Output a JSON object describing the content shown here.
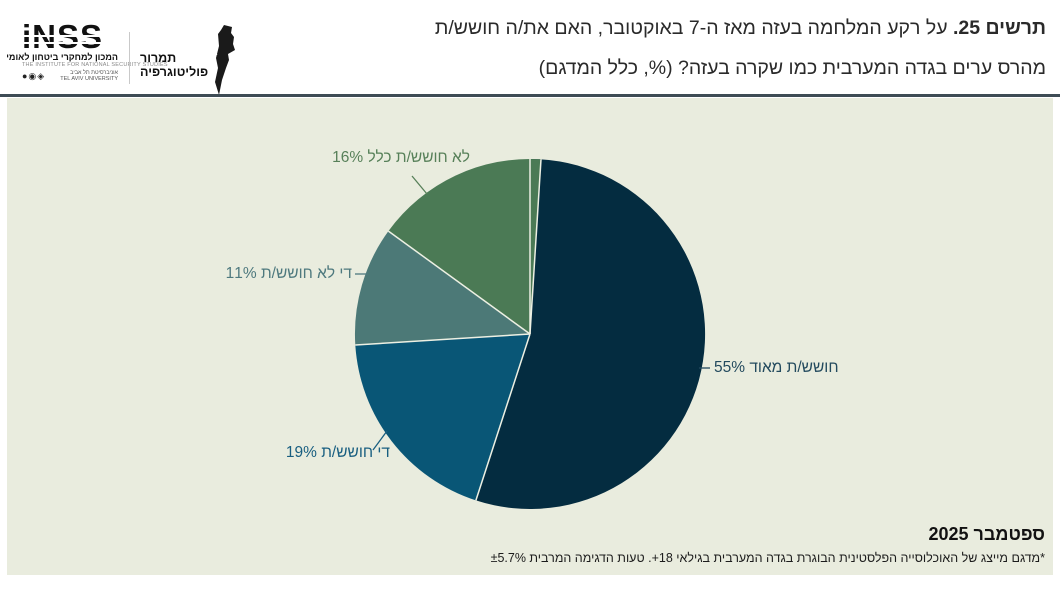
{
  "header": {
    "inss_logo": {
      "brand": "iNSS",
      "sub_he": "המכון למחקרי ביטחון לאומי",
      "sub_en": "THE INSTITUTE FOR NATIONAL SECURITY STUDIES",
      "badges": "●◉◈",
      "affil_he": "אוניברסיטת תל אביב",
      "affil_en": "TEL AVIV UNIVERSITY"
    },
    "tamrur_logo": {
      "line1": "תמרור",
      "line2": "פוליטוגרפיה"
    },
    "title_bold": "תרשים 25.",
    "title_rest": " על רקע המלחמה בעזה מאז ה-7 באוקטובר, האם את/ה חושש/ת",
    "title_line2": "מהרס ערים בגדה המערבית כמו שקרה בעזה? (%, כלל המדגם)"
  },
  "footer": {
    "date": "ספטמבר 2025",
    "footnote": "*מדגם מייצג של האוכלוסייה הפלסטינית הבוגרת בגדה המערבית בגילאי 18+. טעות הדגימה המרבית ±5.7%"
  },
  "colors": {
    "panel_bg": "#e9ecde",
    "rule": "#3e4c55",
    "separator": "#edf0e3"
  },
  "chart_data": {
    "type": "pie",
    "title": "תרשים 25. על רקע המלחמה בעזה מאז ה-7 באוקטובר, האם את/ה חושש/ת מהרס ערים בגדה המערבית כמו שקרה בעזה? (%, כלל המדגם)",
    "start_angle_deg": -90,
    "direction": "clockwise",
    "legend_position": "none",
    "slices": [
      {
        "label": "חושש/ת מאוד",
        "value": 55,
        "color": "#042c40",
        "label_color": "#234a5e",
        "display": "חושש/ת מאוד 55%"
      },
      {
        "label": "די חושש/ת",
        "value": 19,
        "color": "#095676",
        "label_color": "#185e80",
        "display": "די חושש/ת 19%"
      },
      {
        "label": "די לא חושש/ת",
        "value": 11,
        "color": "#4c7977",
        "label_color": "#4e797e",
        "display": "די לא חושש/ת 11%"
      },
      {
        "label": "לא חושש/ת כלל",
        "value": 16,
        "color": "#4b7a55",
        "label_color": "#578059",
        "display": "לא חושש/ת כלל 16%"
      }
    ]
  }
}
